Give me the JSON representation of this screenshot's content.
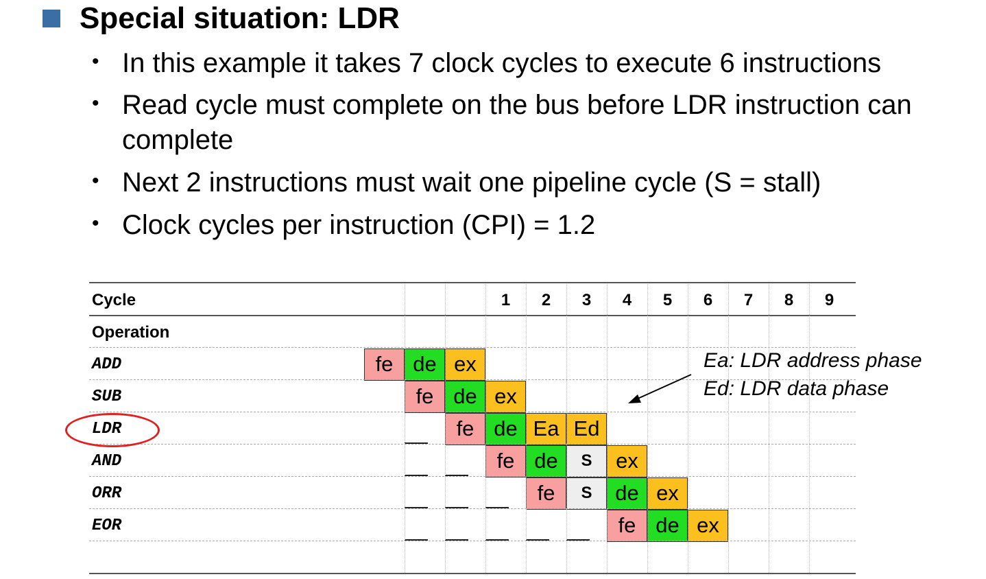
{
  "title": "Special situation: LDR",
  "bullets": [
    "In this example it takes 7 clock cycles to execute 6 instructions",
    "Read cycle must complete on the bus before LDR instruction can",
    "complete",
    "Next 2 instructions must wait one pipeline cycle (S = stall)",
    "Clock cycles per instruction (CPI) = 1.2"
  ],
  "table": {
    "cycle_label": "Cycle",
    "operation_label": "Operation",
    "cycles": [
      "1",
      "2",
      "3",
      "4",
      "5",
      "6",
      "7",
      "8",
      "9"
    ],
    "rows": [
      {
        "op": "ADD",
        "start": -2,
        "stages": [
          "fe",
          "de",
          "ex"
        ]
      },
      {
        "op": "SUB",
        "start": -1,
        "stages": [
          "fe",
          "de",
          "ex"
        ]
      },
      {
        "op": "LDR",
        "start": 0,
        "stages": [
          "fe",
          "de",
          "Ea",
          "Ed"
        ]
      },
      {
        "op": "AND",
        "start": 1,
        "stages": [
          "fe",
          "de",
          "S",
          "ex"
        ]
      },
      {
        "op": "ORR",
        "start": 2,
        "stages": [
          "fe",
          "S",
          "de",
          "ex"
        ]
      },
      {
        "op": "EOR",
        "start": 4,
        "stages": [
          "fe",
          "de",
          "ex"
        ]
      }
    ]
  },
  "annotation": {
    "line1": "Ea: LDR address phase",
    "line2": "Ed: LDR data phase"
  },
  "colors": {
    "fe": "#f8a0a0",
    "de": "#22dd22",
    "ex": "#fbbf1e",
    "stall": "#eeeeee",
    "highlight": "#e02020",
    "bullet_square": "#3a6ea5"
  }
}
